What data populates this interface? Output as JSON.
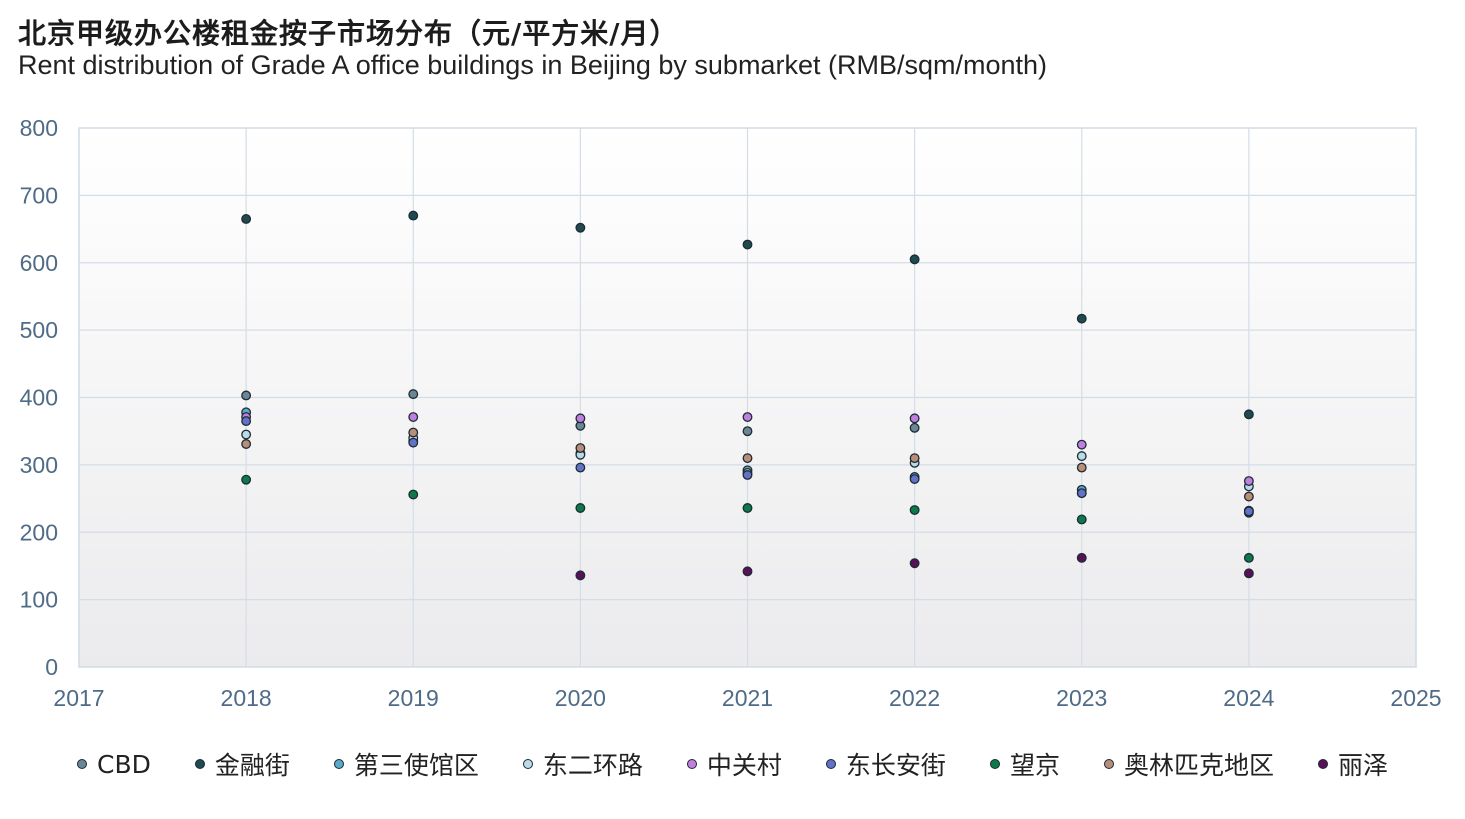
{
  "chart_data": {
    "type": "scatter",
    "title": "北京甲级办公楼租金按子市场分布（元/平方米/月）",
    "subtitle": "Rent distribution of Grade A office buildings in Beijing by submarket (RMB/sqm/month)",
    "xlabel": "",
    "ylabel": "",
    "xlim": [
      2017,
      2025
    ],
    "ylim": [
      0,
      800
    ],
    "x_ticks": [
      "2017",
      "2018",
      "2019",
      "2020",
      "2021",
      "2022",
      "2023",
      "2024",
      "2025"
    ],
    "y_ticks": [
      "0",
      "100",
      "200",
      "300",
      "400",
      "500",
      "600",
      "700",
      "800"
    ],
    "grid": true,
    "legend_position": "bottom",
    "x": [
      2018,
      2019,
      2020,
      2021,
      2022,
      2023,
      2024
    ],
    "series": [
      {
        "name": "CBD",
        "color": "#6b8796",
        "values": [
          403,
          405,
          358,
          350,
          355,
          258,
          232
        ]
      },
      {
        "name": "金融街",
        "color": "#1f4a4f",
        "values": [
          665,
          670,
          652,
          627,
          605,
          517,
          375
        ]
      },
      {
        "name": "第三使馆区",
        "color": "#5aa9c8",
        "values": [
          378,
          335,
          317,
          292,
          282,
          263,
          229
        ]
      },
      {
        "name": "东二环路",
        "color": "#b9dbe8",
        "values": [
          345,
          340,
          315,
          288,
          303,
          313,
          268
        ]
      },
      {
        "name": "中关村",
        "color": "#c07fe0",
        "values": [
          371,
          371,
          369,
          371,
          369,
          330,
          276
        ]
      },
      {
        "name": "东长安街",
        "color": "#6172c8",
        "values": [
          365,
          333,
          296,
          285,
          279,
          258,
          231
        ]
      },
      {
        "name": "望京",
        "color": "#0b7a4a",
        "values": [
          278,
          256,
          236,
          236,
          233,
          219,
          162
        ]
      },
      {
        "name": "奥林匹克地区",
        "color": "#b98d78",
        "values": [
          331,
          348,
          325,
          310,
          310,
          296,
          253
        ]
      },
      {
        "name": "丽泽",
        "color": "#5b0e5a",
        "values": [
          null,
          null,
          136,
          142,
          154,
          162,
          139
        ]
      }
    ]
  }
}
